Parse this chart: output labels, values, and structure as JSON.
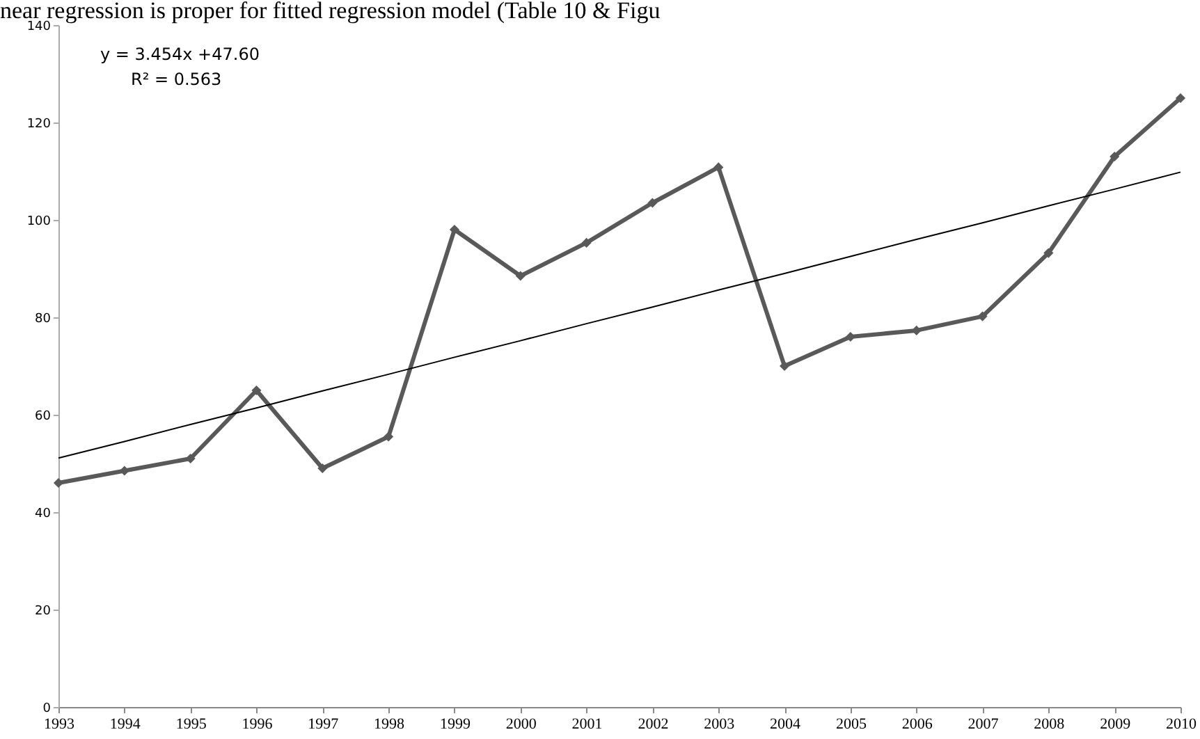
{
  "chart_data": {
    "type": "line",
    "title": "near regression is proper for fitted regression model (Table 10 & Figu",
    "categories": [
      "1993",
      "1994",
      "1995",
      "1996",
      "1997",
      "1998",
      "1999",
      "2000",
      "2001",
      "2002",
      "2003",
      "2004",
      "2005",
      "2006",
      "2007",
      "2008",
      "2009",
      "2010"
    ],
    "series": [
      {
        "color": "#595959",
        "marker": "diamond",
        "values": [
          46,
          48.5,
          51,
          65,
          49,
          55.5,
          98,
          88.5,
          95.3,
          103.5,
          110.8,
          70,
          76,
          77.3,
          80.2,
          93.2,
          113,
          125
        ]
      },
      {
        "color": "#000000",
        "marker": "none",
        "values": [
          51.1,
          54.5,
          58.0,
          61.4,
          64.9,
          68.3,
          71.8,
          75.2,
          78.7,
          82.1,
          85.6,
          89.0,
          92.5,
          96.0,
          99.4,
          102.9,
          106.3,
          109.8
        ]
      }
    ],
    "ylim": [
      0,
      140
    ],
    "yticks": [
      0,
      20,
      40,
      60,
      80,
      100,
      120,
      140
    ],
    "annotations": [
      "y = 3.454x +47.60",
      "R² = 0.563"
    ]
  }
}
